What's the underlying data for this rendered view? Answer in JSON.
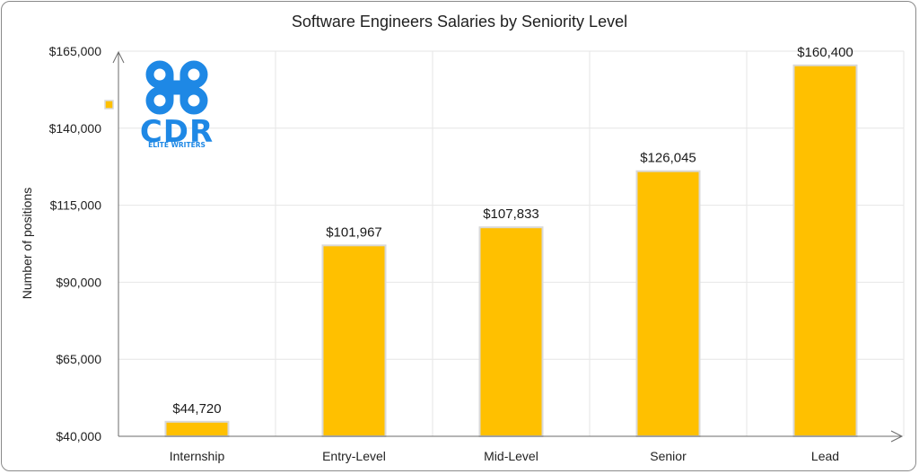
{
  "chart_data": {
    "type": "bar",
    "title": "Software Engineers Salaries by Seniority Level",
    "ylabel": "Number of positions",
    "xlabel": "",
    "categories": [
      "Internship",
      "Entry-Level",
      "Mid-Level",
      "Senior",
      "Lead"
    ],
    "values": [
      44720,
      101967,
      107833,
      126045,
      160400
    ],
    "data_labels": [
      "$44,720",
      "$101,967",
      "$107,833",
      "$126,045",
      "$160,400"
    ],
    "ylim": [
      40000,
      165000
    ],
    "yticks": [
      40000,
      65000,
      90000,
      115000,
      140000,
      165000
    ],
    "ytick_labels": [
      "$40,000",
      "$65,000",
      "$90,000",
      "$115,000",
      "$140,000",
      "$165,000"
    ],
    "grid": "vertical",
    "legend": "top-left",
    "bar_color": "#FFC000",
    "bar_edge_color": "#D9D9D9"
  },
  "logo": {
    "main_text": "CDR",
    "sub_text": "ELITE WRITERS",
    "icon": "command-key-icon",
    "color": "#1E88E5"
  }
}
